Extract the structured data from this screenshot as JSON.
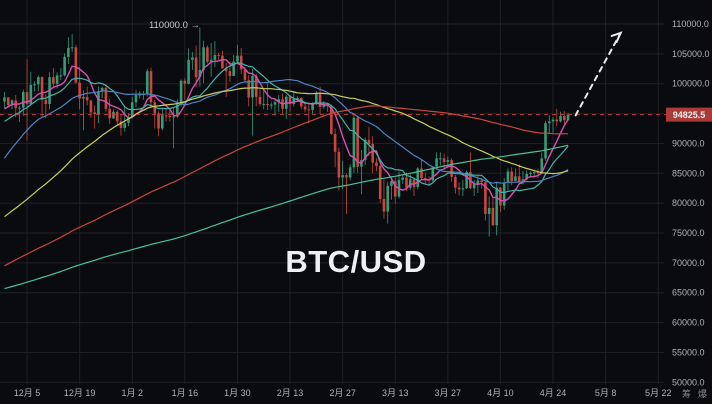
{
  "app": {
    "watermark": "BTC/USD",
    "corner_buttons": [
      {
        "label": "筹"
      },
      {
        "label": "爆"
      }
    ]
  },
  "annotations": {
    "target_price_label": "110000.0 →",
    "current_price_label": "94825.5"
  },
  "chart_data": {
    "type": "candlestick",
    "symbol": "BTC/USD",
    "timeframe_hint": "1D",
    "current_price": 94825.5,
    "y_axis": {
      "min": 50000,
      "max": 110000,
      "step": 5000,
      "labels": [
        "110000.0",
        "105000.0",
        "100000.0",
        "90000.0",
        "85000.0",
        "80000.0",
        "75000.0",
        "70000.0",
        "65000.0",
        "60000.0",
        "55000.0",
        "50000.0"
      ],
      "label_prices": [
        110000,
        105000,
        100000,
        90000,
        85000,
        80000,
        75000,
        70000,
        65000,
        60000,
        55000,
        50000
      ],
      "grid_prices": [
        110000,
        105000,
        100000,
        95000,
        90000,
        85000,
        80000,
        75000,
        70000,
        65000,
        60000,
        55000,
        50000
      ]
    },
    "x_ticks": [
      {
        "idx": 6,
        "text": "12月 5"
      },
      {
        "idx": 20,
        "text": "12月 19"
      },
      {
        "idx": 34,
        "text": "1月 2"
      },
      {
        "idx": 48,
        "text": "1月 16"
      },
      {
        "idx": 62,
        "text": "1月 30"
      },
      {
        "idx": 76,
        "text": "2月 13"
      },
      {
        "idx": 90,
        "text": "2月 27"
      },
      {
        "idx": 104,
        "text": "3月 13"
      },
      {
        "idx": 118,
        "text": "3月 27"
      },
      {
        "idx": 132,
        "text": "4月 10"
      },
      {
        "idx": 146,
        "text": "4月 24"
      },
      {
        "idx": 160,
        "text": "5月 8"
      },
      {
        "idx": 174,
        "text": "5月 22"
      }
    ],
    "price_line": {
      "price": 94825.5,
      "color": "#bb403b"
    },
    "projection_arrow": {
      "from": {
        "idx": 152,
        "price": 94700
      },
      "to": {
        "idx": 164,
        "price": 108500
      }
    },
    "target_level": 110000,
    "colors": {
      "up": "#359b78",
      "down": "#c9473f",
      "background": "#0a0b0e",
      "grid": "#1d2127",
      "axis_text": "#aeb1b8",
      "badge_bg": "#a93b38",
      "badge_text": "#f7eded",
      "watermark": "#eef0f3",
      "arrow": "#e9eaec"
    },
    "ma_lines": [
      {
        "name": "MA7",
        "window": 7,
        "color": "#d650b4",
        "width": 1.4
      },
      {
        "name": "MA14",
        "window": 14,
        "color": "#45b3ab",
        "width": 1.2
      },
      {
        "name": "MA30",
        "window": 30,
        "color": "#4f83c2",
        "width": 1.2
      },
      {
        "name": "MA60",
        "window": 60,
        "color": "#c8cf5e",
        "width": 1.2
      },
      {
        "name": "MA120",
        "window": 120,
        "color": "#c94540",
        "width": 1.2
      },
      {
        "name": "MA200",
        "window": 200,
        "color": "#4cc291",
        "width": 1.2
      }
    ],
    "ma_seed_anchors": [
      [
        -208,
        63000
      ],
      [
        -190,
        60000
      ],
      [
        -175,
        57500
      ],
      [
        -160,
        65000
      ],
      [
        -150,
        61000
      ],
      [
        -140,
        58500
      ],
      [
        -130,
        60000
      ],
      [
        -120,
        54500
      ],
      [
        -110,
        63000
      ],
      [
        -100,
        62500
      ],
      [
        -90,
        57000
      ],
      [
        -80,
        60500
      ],
      [
        -70,
        63000
      ],
      [
        -60,
        67500
      ],
      [
        -50,
        68000
      ],
      [
        -40,
        67000
      ],
      [
        -32,
        69000
      ],
      [
        -28,
        72000
      ],
      [
        -24,
        76000
      ],
      [
        -20,
        88000
      ],
      [
        -16,
        90500
      ],
      [
        -12,
        91000
      ],
      [
        -8,
        92000
      ],
      [
        -4,
        95500
      ],
      [
        -1,
        96700
      ]
    ],
    "candles": [
      [
        97000,
        98600,
        95900,
        97700
      ],
      [
        97700,
        97800,
        96100,
        96400
      ],
      [
        96400,
        97400,
        95700,
        97200
      ],
      [
        97200,
        98100,
        94400,
        95900
      ],
      [
        95900,
        96300,
        93600,
        96000
      ],
      [
        96000,
        99000,
        94600,
        98600
      ],
      [
        98600,
        104100,
        90500,
        96600
      ],
      [
        96600,
        102000,
        96400,
        99800
      ],
      [
        99800,
        100400,
        98700,
        99900
      ],
      [
        99900,
        101400,
        98700,
        101100
      ],
      [
        101100,
        101200,
        94300,
        97300
      ],
      [
        97300,
        98200,
        94200,
        96600
      ],
      [
        96600,
        101900,
        95700,
        101100
      ],
      [
        101100,
        102600,
        99300,
        100000
      ],
      [
        100000,
        101900,
        99200,
        101400
      ],
      [
        101400,
        102600,
        100600,
        101400
      ],
      [
        101400,
        105100,
        101200,
        104500
      ],
      [
        104500,
        107800,
        103300,
        106000
      ],
      [
        106000,
        108300,
        105300,
        106100
      ],
      [
        106100,
        106500,
        100000,
        100200
      ],
      [
        100200,
        102800,
        95700,
        97500
      ],
      [
        97500,
        98900,
        92200,
        97800
      ],
      [
        97800,
        99500,
        96400,
        97200
      ],
      [
        97200,
        97300,
        94300,
        95200
      ],
      [
        95200,
        96400,
        92500,
        94900
      ],
      [
        94900,
        99500,
        93400,
        98700
      ],
      [
        98700,
        99500,
        97600,
        99300
      ],
      [
        99300,
        99900,
        95300,
        95800
      ],
      [
        95800,
        97500,
        93300,
        94200
      ],
      [
        94200,
        95700,
        94100,
        95300
      ],
      [
        95300,
        95600,
        93000,
        93700
      ],
      [
        93700,
        94900,
        91300,
        92600
      ],
      [
        92600,
        96100,
        92000,
        93400
      ],
      [
        93400,
        95100,
        92900,
        94400
      ],
      [
        94400,
        97800,
        94300,
        96900
      ],
      [
        96900,
        98900,
        96100,
        98100
      ],
      [
        98100,
        98800,
        97500,
        98200
      ],
      [
        98200,
        98800,
        97300,
        98300
      ],
      [
        98300,
        102500,
        97900,
        102100
      ],
      [
        102100,
        102700,
        96100,
        96900
      ],
      [
        96900,
        97300,
        92500,
        95000
      ],
      [
        95000,
        95400,
        91200,
        92500
      ],
      [
        92500,
        95800,
        92200,
        94700
      ],
      [
        94700,
        95900,
        93700,
        94600
      ],
      [
        94600,
        95500,
        93700,
        94500
      ],
      [
        94500,
        95900,
        89200,
        94500
      ],
      [
        94500,
        97400,
        94300,
        96500
      ],
      [
        96500,
        100700,
        96200,
        100500
      ],
      [
        100500,
        100900,
        97300,
        100000
      ],
      [
        100000,
        105900,
        99900,
        104000
      ],
      [
        104000,
        105300,
        102300,
        104400
      ],
      [
        104400,
        106400,
        99500,
        101100
      ],
      [
        101100,
        109400,
        99500,
        102300
      ],
      [
        102300,
        107200,
        100100,
        106100
      ],
      [
        106100,
        106400,
        103400,
        103700
      ],
      [
        103700,
        106800,
        101200,
        104000
      ],
      [
        104000,
        107100,
        102800,
        104800
      ],
      [
        104800,
        105200,
        104000,
        104700
      ],
      [
        104700,
        105500,
        102500,
        102600
      ],
      [
        102600,
        103400,
        97800,
        102100
      ],
      [
        102100,
        103700,
        100300,
        101300
      ],
      [
        101300,
        104800,
        101300,
        103700
      ],
      [
        103700,
        106500,
        103300,
        104700
      ],
      [
        104700,
        106000,
        101600,
        102400
      ],
      [
        102400,
        102800,
        100400,
        100600
      ],
      [
        100600,
        101400,
        96200,
        97700
      ],
      [
        97700,
        102500,
        91300,
        101300
      ],
      [
        101300,
        101700,
        96200,
        97800
      ],
      [
        97800,
        99100,
        96200,
        96600
      ],
      [
        96600,
        99100,
        95700,
        96600
      ],
      [
        96600,
        100100,
        95600,
        96500
      ],
      [
        96500,
        96900,
        95700,
        96500
      ],
      [
        96500,
        97300,
        94700,
        96900
      ],
      [
        96900,
        98100,
        95300,
        97400
      ],
      [
        97400,
        98400,
        94900,
        95800
      ],
      [
        95800,
        98100,
        94100,
        97800
      ],
      [
        97800,
        98100,
        95200,
        96600
      ],
      [
        96600,
        98800,
        96200,
        97500
      ],
      [
        97500,
        97900,
        97000,
        97600
      ],
      [
        97600,
        97700,
        95800,
        96200
      ],
      [
        96200,
        97000,
        95200,
        95700
      ],
      [
        95700,
        96700,
        93400,
        95600
      ],
      [
        95600,
        96900,
        95000,
        96600
      ],
      [
        96600,
        98800,
        96400,
        98300
      ],
      [
        98300,
        99500,
        94900,
        96100
      ],
      [
        96100,
        97100,
        95800,
        96600
      ],
      [
        96600,
        96700,
        95300,
        96300
      ],
      [
        96300,
        96500,
        91400,
        91600
      ],
      [
        91600,
        92500,
        86000,
        88600
      ],
      [
        88600,
        89300,
        82100,
        84300
      ],
      [
        84300,
        87100,
        82300,
        84700
      ],
      [
        84700,
        85000,
        78200,
        84300
      ],
      [
        84300,
        86500,
        83800,
        86000
      ],
      [
        86000,
        95000,
        85100,
        94300
      ],
      [
        94300,
        94400,
        85100,
        86100
      ],
      [
        86100,
        88900,
        81500,
        87200
      ],
      [
        87200,
        91000,
        86400,
        90600
      ],
      [
        90600,
        92800,
        87900,
        89900
      ],
      [
        89900,
        91200,
        85000,
        86800
      ],
      [
        86800,
        87500,
        85300,
        86200
      ],
      [
        86200,
        86500,
        80000,
        80700
      ],
      [
        80700,
        84000,
        77400,
        78600
      ],
      [
        78600,
        83600,
        76600,
        82900
      ],
      [
        82900,
        84400,
        80600,
        83700
      ],
      [
        83700,
        84300,
        79900,
        81100
      ],
      [
        81100,
        85300,
        80800,
        83900
      ],
      [
        83900,
        84700,
        83200,
        84300
      ],
      [
        84300,
        85100,
        82000,
        82600
      ],
      [
        82600,
        84800,
        82200,
        84000
      ],
      [
        84000,
        84000,
        81200,
        82700
      ],
      [
        82700,
        86000,
        82300,
        85800
      ],
      [
        85800,
        87400,
        83900,
        84200
      ],
      [
        84200,
        85100,
        83100,
        84000
      ],
      [
        84000,
        84500,
        83000,
        83800
      ],
      [
        83800,
        86100,
        83600,
        86100
      ],
      [
        86100,
        88500,
        85600,
        87500
      ],
      [
        87500,
        88500,
        86300,
        87500
      ],
      [
        87500,
        88300,
        85800,
        86900
      ],
      [
        86900,
        87800,
        85900,
        87200
      ],
      [
        87200,
        87500,
        83600,
        84400
      ],
      [
        84400,
        84700,
        81600,
        82600
      ],
      [
        82600,
        83500,
        81300,
        82300
      ],
      [
        82300,
        83900,
        81200,
        82500
      ],
      [
        82500,
        85500,
        82400,
        85200
      ],
      [
        85200,
        88500,
        82300,
        82500
      ],
      [
        82500,
        83900,
        81200,
        83200
      ],
      [
        83200,
        84700,
        81700,
        83800
      ],
      [
        83800,
        84200,
        82400,
        83500
      ],
      [
        83500,
        83700,
        77100,
        78200
      ],
      [
        78200,
        81100,
        74400,
        79200
      ],
      [
        79200,
        80800,
        76200,
        76300
      ],
      [
        76300,
        83600,
        74600,
        82600
      ],
      [
        82600,
        82700,
        78500,
        79600
      ],
      [
        79600,
        84200,
        78900,
        83400
      ],
      [
        83400,
        85800,
        82100,
        85300
      ],
      [
        85300,
        86000,
        83000,
        83700
      ],
      [
        83700,
        85800,
        83700,
        84500
      ],
      [
        84500,
        86500,
        83400,
        83600
      ],
      [
        83600,
        85400,
        83100,
        84000
      ],
      [
        84000,
        85500,
        83800,
        84900
      ],
      [
        84900,
        85300,
        84300,
        85100
      ],
      [
        85100,
        85600,
        84400,
        85200
      ],
      [
        85200,
        85800,
        84200,
        85100
      ],
      [
        85100,
        88500,
        84900,
        87500
      ],
      [
        87500,
        93800,
        87100,
        93400
      ],
      [
        93400,
        94700,
        91700,
        93700
      ],
      [
        93700,
        94400,
        91800,
        94000
      ],
      [
        94000,
        95800,
        92900,
        93700
      ],
      [
        93700,
        95300,
        93500,
        94600
      ],
      [
        94600,
        95400,
        93300,
        93900
      ],
      [
        93900,
        95100,
        93800,
        94825.5
      ]
    ]
  }
}
